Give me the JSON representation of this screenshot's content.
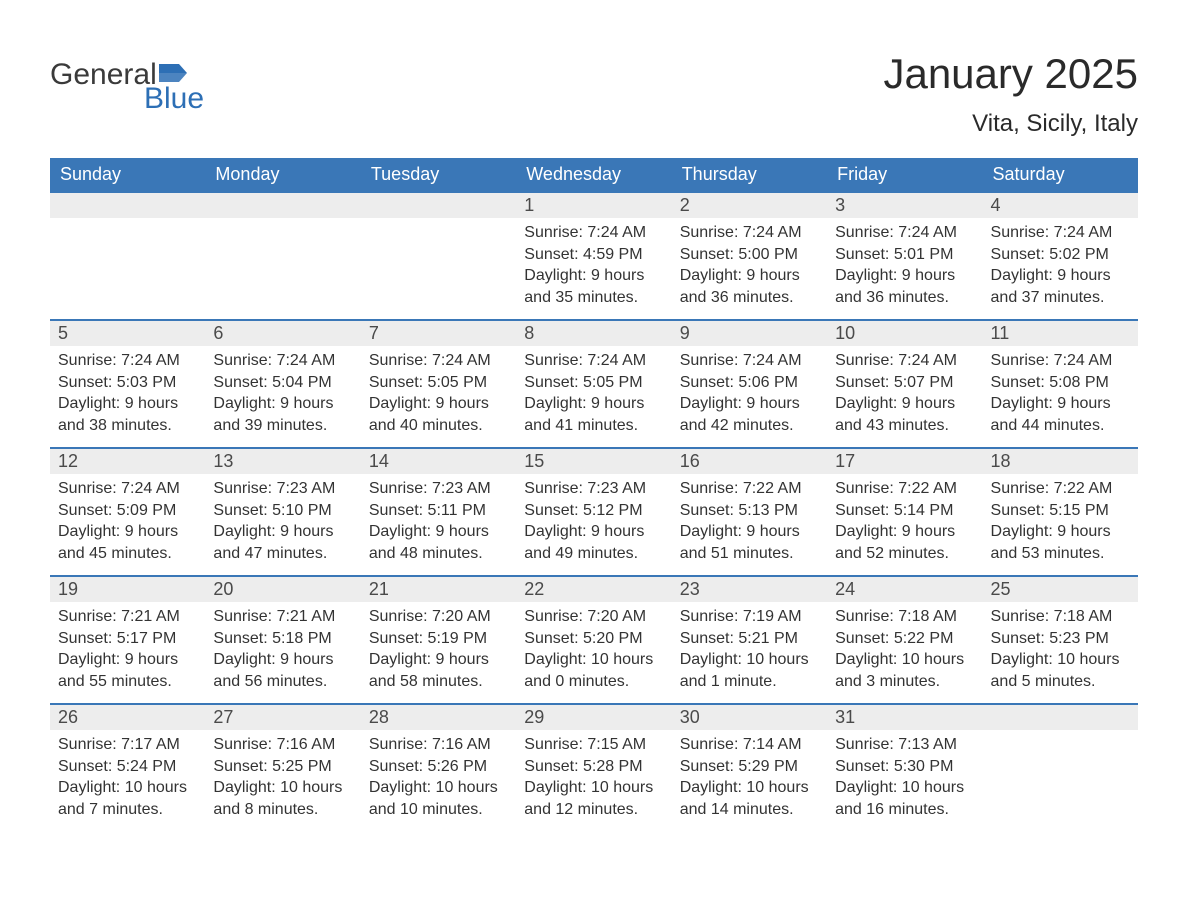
{
  "logo": {
    "text1": "General",
    "text2": "Blue"
  },
  "title": {
    "month": "January 2025",
    "location": "Vita, Sicily, Italy"
  },
  "colors": {
    "header_bg": "#3a77b7",
    "header_text": "#ffffff",
    "row_border": "#3a77b7",
    "daynum_bg": "#ededed",
    "text": "#333333",
    "logo_gray": "#3a3a3a",
    "logo_blue": "#2d6fb5"
  },
  "weekdays": [
    "Sunday",
    "Monday",
    "Tuesday",
    "Wednesday",
    "Thursday",
    "Friday",
    "Saturday"
  ],
  "weeks": [
    [
      null,
      null,
      null,
      {
        "n": "1",
        "sunrise": "Sunrise: 7:24 AM",
        "sunset": "Sunset: 4:59 PM",
        "dl1": "Daylight: 9 hours",
        "dl2": "and 35 minutes."
      },
      {
        "n": "2",
        "sunrise": "Sunrise: 7:24 AM",
        "sunset": "Sunset: 5:00 PM",
        "dl1": "Daylight: 9 hours",
        "dl2": "and 36 minutes."
      },
      {
        "n": "3",
        "sunrise": "Sunrise: 7:24 AM",
        "sunset": "Sunset: 5:01 PM",
        "dl1": "Daylight: 9 hours",
        "dl2": "and 36 minutes."
      },
      {
        "n": "4",
        "sunrise": "Sunrise: 7:24 AM",
        "sunset": "Sunset: 5:02 PM",
        "dl1": "Daylight: 9 hours",
        "dl2": "and 37 minutes."
      }
    ],
    [
      {
        "n": "5",
        "sunrise": "Sunrise: 7:24 AM",
        "sunset": "Sunset: 5:03 PM",
        "dl1": "Daylight: 9 hours",
        "dl2": "and 38 minutes."
      },
      {
        "n": "6",
        "sunrise": "Sunrise: 7:24 AM",
        "sunset": "Sunset: 5:04 PM",
        "dl1": "Daylight: 9 hours",
        "dl2": "and 39 minutes."
      },
      {
        "n": "7",
        "sunrise": "Sunrise: 7:24 AM",
        "sunset": "Sunset: 5:05 PM",
        "dl1": "Daylight: 9 hours",
        "dl2": "and 40 minutes."
      },
      {
        "n": "8",
        "sunrise": "Sunrise: 7:24 AM",
        "sunset": "Sunset: 5:05 PM",
        "dl1": "Daylight: 9 hours",
        "dl2": "and 41 minutes."
      },
      {
        "n": "9",
        "sunrise": "Sunrise: 7:24 AM",
        "sunset": "Sunset: 5:06 PM",
        "dl1": "Daylight: 9 hours",
        "dl2": "and 42 minutes."
      },
      {
        "n": "10",
        "sunrise": "Sunrise: 7:24 AM",
        "sunset": "Sunset: 5:07 PM",
        "dl1": "Daylight: 9 hours",
        "dl2": "and 43 minutes."
      },
      {
        "n": "11",
        "sunrise": "Sunrise: 7:24 AM",
        "sunset": "Sunset: 5:08 PM",
        "dl1": "Daylight: 9 hours",
        "dl2": "and 44 minutes."
      }
    ],
    [
      {
        "n": "12",
        "sunrise": "Sunrise: 7:24 AM",
        "sunset": "Sunset: 5:09 PM",
        "dl1": "Daylight: 9 hours",
        "dl2": "and 45 minutes."
      },
      {
        "n": "13",
        "sunrise": "Sunrise: 7:23 AM",
        "sunset": "Sunset: 5:10 PM",
        "dl1": "Daylight: 9 hours",
        "dl2": "and 47 minutes."
      },
      {
        "n": "14",
        "sunrise": "Sunrise: 7:23 AM",
        "sunset": "Sunset: 5:11 PM",
        "dl1": "Daylight: 9 hours",
        "dl2": "and 48 minutes."
      },
      {
        "n": "15",
        "sunrise": "Sunrise: 7:23 AM",
        "sunset": "Sunset: 5:12 PM",
        "dl1": "Daylight: 9 hours",
        "dl2": "and 49 minutes."
      },
      {
        "n": "16",
        "sunrise": "Sunrise: 7:22 AM",
        "sunset": "Sunset: 5:13 PM",
        "dl1": "Daylight: 9 hours",
        "dl2": "and 51 minutes."
      },
      {
        "n": "17",
        "sunrise": "Sunrise: 7:22 AM",
        "sunset": "Sunset: 5:14 PM",
        "dl1": "Daylight: 9 hours",
        "dl2": "and 52 minutes."
      },
      {
        "n": "18",
        "sunrise": "Sunrise: 7:22 AM",
        "sunset": "Sunset: 5:15 PM",
        "dl1": "Daylight: 9 hours",
        "dl2": "and 53 minutes."
      }
    ],
    [
      {
        "n": "19",
        "sunrise": "Sunrise: 7:21 AM",
        "sunset": "Sunset: 5:17 PM",
        "dl1": "Daylight: 9 hours",
        "dl2": "and 55 minutes."
      },
      {
        "n": "20",
        "sunrise": "Sunrise: 7:21 AM",
        "sunset": "Sunset: 5:18 PM",
        "dl1": "Daylight: 9 hours",
        "dl2": "and 56 minutes."
      },
      {
        "n": "21",
        "sunrise": "Sunrise: 7:20 AM",
        "sunset": "Sunset: 5:19 PM",
        "dl1": "Daylight: 9 hours",
        "dl2": "and 58 minutes."
      },
      {
        "n": "22",
        "sunrise": "Sunrise: 7:20 AM",
        "sunset": "Sunset: 5:20 PM",
        "dl1": "Daylight: 10 hours",
        "dl2": "and 0 minutes."
      },
      {
        "n": "23",
        "sunrise": "Sunrise: 7:19 AM",
        "sunset": "Sunset: 5:21 PM",
        "dl1": "Daylight: 10 hours",
        "dl2": "and 1 minute."
      },
      {
        "n": "24",
        "sunrise": "Sunrise: 7:18 AM",
        "sunset": "Sunset: 5:22 PM",
        "dl1": "Daylight: 10 hours",
        "dl2": "and 3 minutes."
      },
      {
        "n": "25",
        "sunrise": "Sunrise: 7:18 AM",
        "sunset": "Sunset: 5:23 PM",
        "dl1": "Daylight: 10 hours",
        "dl2": "and 5 minutes."
      }
    ],
    [
      {
        "n": "26",
        "sunrise": "Sunrise: 7:17 AM",
        "sunset": "Sunset: 5:24 PM",
        "dl1": "Daylight: 10 hours",
        "dl2": "and 7 minutes."
      },
      {
        "n": "27",
        "sunrise": "Sunrise: 7:16 AM",
        "sunset": "Sunset: 5:25 PM",
        "dl1": "Daylight: 10 hours",
        "dl2": "and 8 minutes."
      },
      {
        "n": "28",
        "sunrise": "Sunrise: 7:16 AM",
        "sunset": "Sunset: 5:26 PM",
        "dl1": "Daylight: 10 hours",
        "dl2": "and 10 minutes."
      },
      {
        "n": "29",
        "sunrise": "Sunrise: 7:15 AM",
        "sunset": "Sunset: 5:28 PM",
        "dl1": "Daylight: 10 hours",
        "dl2": "and 12 minutes."
      },
      {
        "n": "30",
        "sunrise": "Sunrise: 7:14 AM",
        "sunset": "Sunset: 5:29 PM",
        "dl1": "Daylight: 10 hours",
        "dl2": "and 14 minutes."
      },
      {
        "n": "31",
        "sunrise": "Sunrise: 7:13 AM",
        "sunset": "Sunset: 5:30 PM",
        "dl1": "Daylight: 10 hours",
        "dl2": "and 16 minutes."
      },
      null
    ]
  ]
}
